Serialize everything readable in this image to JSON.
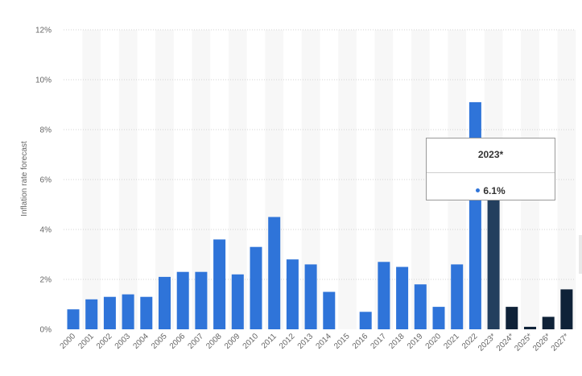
{
  "chart_data": {
    "type": "bar",
    "ylabel": "Inflation rate forecast",
    "yticks": [
      "0%",
      "2%",
      "4%",
      "6%",
      "8%",
      "10%",
      "12%"
    ],
    "ylim": [
      0,
      12
    ],
    "grid": true,
    "categories": [
      "2000",
      "2001",
      "2002",
      "2003",
      "2004",
      "2005",
      "2006",
      "2007",
      "2008",
      "2009",
      "2010",
      "2011",
      "2012",
      "2013",
      "2014",
      "2015",
      "2016",
      "2017",
      "2018",
      "2019",
      "2020",
      "2021",
      "2022",
      "2023*",
      "2024*",
      "2025*",
      "2026*",
      "2027*"
    ],
    "values": [
      0.8,
      1.2,
      1.3,
      1.4,
      1.3,
      2.1,
      2.3,
      2.3,
      3.6,
      2.2,
      3.3,
      4.5,
      2.8,
      2.6,
      1.5,
      0.0,
      0.7,
      2.7,
      2.5,
      1.8,
      0.9,
      2.6,
      9.1,
      6.1,
      0.9,
      0.1,
      0.5,
      1.6
    ],
    "bar_colors": [
      "#2f74d9",
      "#2f74d9",
      "#2f74d9",
      "#2f74d9",
      "#2f74d9",
      "#2f74d9",
      "#2f74d9",
      "#2f74d9",
      "#2f74d9",
      "#2f74d9",
      "#2f74d9",
      "#2f74d9",
      "#2f74d9",
      "#2f74d9",
      "#2f74d9",
      "#2f74d9",
      "#2f74d9",
      "#2f74d9",
      "#2f74d9",
      "#2f74d9",
      "#2f74d9",
      "#2f74d9",
      "#2f74d9",
      "#233f5e",
      "#0f2238",
      "#0f2238",
      "#0f2238",
      "#0f2238"
    ]
  },
  "tooltip": {
    "title": "2023*",
    "value": "6.1%",
    "dot_color": "#2f74d9"
  },
  "colors": {
    "band": "#f7f7f7",
    "grid": "#d3d3d3",
    "axis_text": "#666666"
  }
}
